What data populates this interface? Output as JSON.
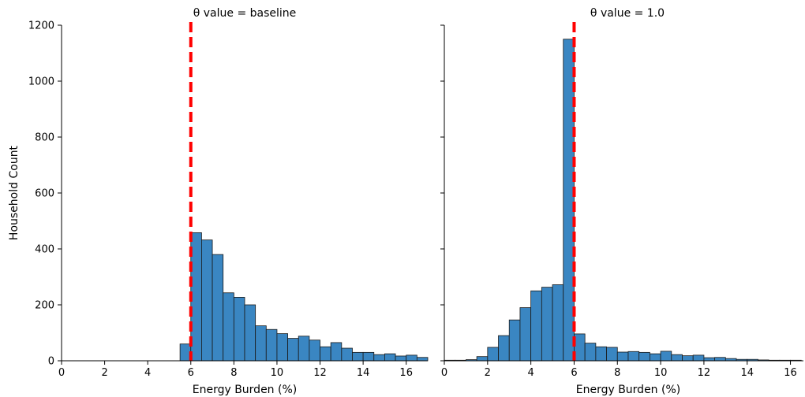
{
  "chart_data": [
    {
      "type": "bar",
      "title": "θ value = baseline",
      "xlabel": "Energy Burden (%)",
      "ylabel": "Household Count",
      "xlim": [
        0,
        17
      ],
      "ylim": [
        0,
        1200
      ],
      "x_ticks": [
        "0",
        "2",
        "4",
        "6",
        "8",
        "10",
        "12",
        "14",
        "16"
      ],
      "y_ticks": [
        "0",
        "200",
        "400",
        "600",
        "800",
        "1000",
        "1200"
      ],
      "threshold": 6,
      "bin_width": 0.5,
      "bins": [
        {
          "x0": 5.5,
          "count": 60
        },
        {
          "x0": 6.0,
          "count": 458
        },
        {
          "x0": 6.5,
          "count": 432
        },
        {
          "x0": 7.0,
          "count": 380
        },
        {
          "x0": 7.5,
          "count": 243
        },
        {
          "x0": 8.0,
          "count": 227
        },
        {
          "x0": 8.5,
          "count": 200
        },
        {
          "x0": 9.0,
          "count": 125
        },
        {
          "x0": 9.5,
          "count": 112
        },
        {
          "x0": 10.0,
          "count": 97
        },
        {
          "x0": 10.5,
          "count": 80
        },
        {
          "x0": 11.0,
          "count": 88
        },
        {
          "x0": 11.5,
          "count": 74
        },
        {
          "x0": 12.0,
          "count": 50
        },
        {
          "x0": 12.5,
          "count": 65
        },
        {
          "x0": 13.0,
          "count": 45
        },
        {
          "x0": 13.5,
          "count": 30
        },
        {
          "x0": 14.0,
          "count": 30
        },
        {
          "x0": 14.5,
          "count": 22
        },
        {
          "x0": 15.0,
          "count": 25
        },
        {
          "x0": 15.5,
          "count": 17
        },
        {
          "x0": 16.0,
          "count": 20
        },
        {
          "x0": 16.5,
          "count": 12
        }
      ]
    },
    {
      "type": "bar",
      "title": "θ value = 1.0",
      "xlabel": "Energy Burden (%)",
      "ylabel": "",
      "xlim": [
        0,
        16.6
      ],
      "ylim": [
        0,
        1200
      ],
      "x_ticks": [
        "0",
        "2",
        "4",
        "6",
        "8",
        "10",
        "12",
        "14",
        "16"
      ],
      "y_ticks": [
        "0",
        "200",
        "400",
        "600",
        "800",
        "1000",
        "1200"
      ],
      "threshold": 6,
      "bin_width": 0.5,
      "bins": [
        {
          "x0": 0.0,
          "count": 2
        },
        {
          "x0": 0.5,
          "count": 2
        },
        {
          "x0": 1.0,
          "count": 4
        },
        {
          "x0": 1.5,
          "count": 15
        },
        {
          "x0": 2.0,
          "count": 48
        },
        {
          "x0": 2.5,
          "count": 90
        },
        {
          "x0": 3.0,
          "count": 146
        },
        {
          "x0": 3.5,
          "count": 190
        },
        {
          "x0": 4.0,
          "count": 250
        },
        {
          "x0": 4.5,
          "count": 263
        },
        {
          "x0": 5.0,
          "count": 272
        },
        {
          "x0": 5.5,
          "count": 1150
        },
        {
          "x0": 6.0,
          "count": 96
        },
        {
          "x0": 6.5,
          "count": 63
        },
        {
          "x0": 7.0,
          "count": 50
        },
        {
          "x0": 7.5,
          "count": 48
        },
        {
          "x0": 8.0,
          "count": 31
        },
        {
          "x0": 8.5,
          "count": 33
        },
        {
          "x0": 9.0,
          "count": 30
        },
        {
          "x0": 9.5,
          "count": 25
        },
        {
          "x0": 10.0,
          "count": 34
        },
        {
          "x0": 10.5,
          "count": 22
        },
        {
          "x0": 11.0,
          "count": 18
        },
        {
          "x0": 11.5,
          "count": 20
        },
        {
          "x0": 12.0,
          "count": 11
        },
        {
          "x0": 12.5,
          "count": 12
        },
        {
          "x0": 13.0,
          "count": 8
        },
        {
          "x0": 13.5,
          "count": 5
        },
        {
          "x0": 14.0,
          "count": 5
        },
        {
          "x0": 14.5,
          "count": 3
        },
        {
          "x0": 15.0,
          "count": 2
        },
        {
          "x0": 15.5,
          "count": 2
        },
        {
          "x0": 16.0,
          "count": 2
        }
      ]
    }
  ],
  "colors": {
    "bar_fill": "#3a86c2",
    "bar_edge": "#1a1a1a",
    "threshold_line": "#ff0000",
    "axis": "#000000"
  }
}
